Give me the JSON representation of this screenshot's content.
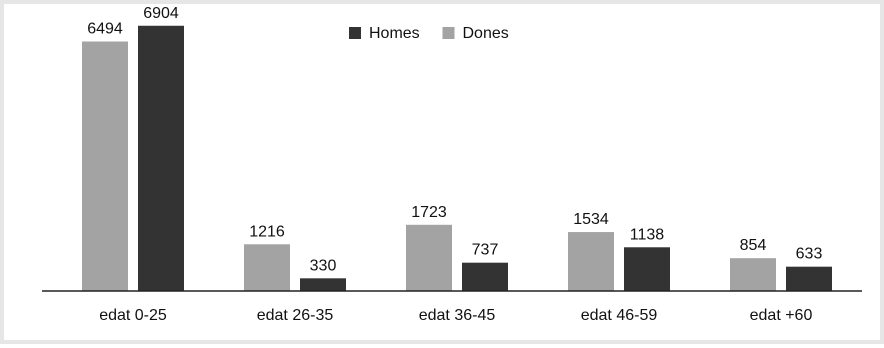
{
  "chart_data": {
    "type": "bar",
    "categories": [
      "edat 0-25",
      "edat 26-35",
      "edat 36-45",
      "edat 46-59",
      "edat +60"
    ],
    "series": [
      {
        "name": "Dones",
        "color": "#a3a3a3",
        "values": [
          6494,
          1216,
          1723,
          1534,
          854
        ]
      },
      {
        "name": "Homes",
        "color": "#333333",
        "values": [
          6904,
          330,
          737,
          1138,
          633
        ]
      }
    ],
    "legend": {
      "placement": "top-center",
      "order": [
        "Homes",
        "Dones"
      ]
    },
    "ylim": [
      0,
      7000
    ],
    "grid": false,
    "title": "",
    "xlabel": "",
    "ylabel": ""
  }
}
